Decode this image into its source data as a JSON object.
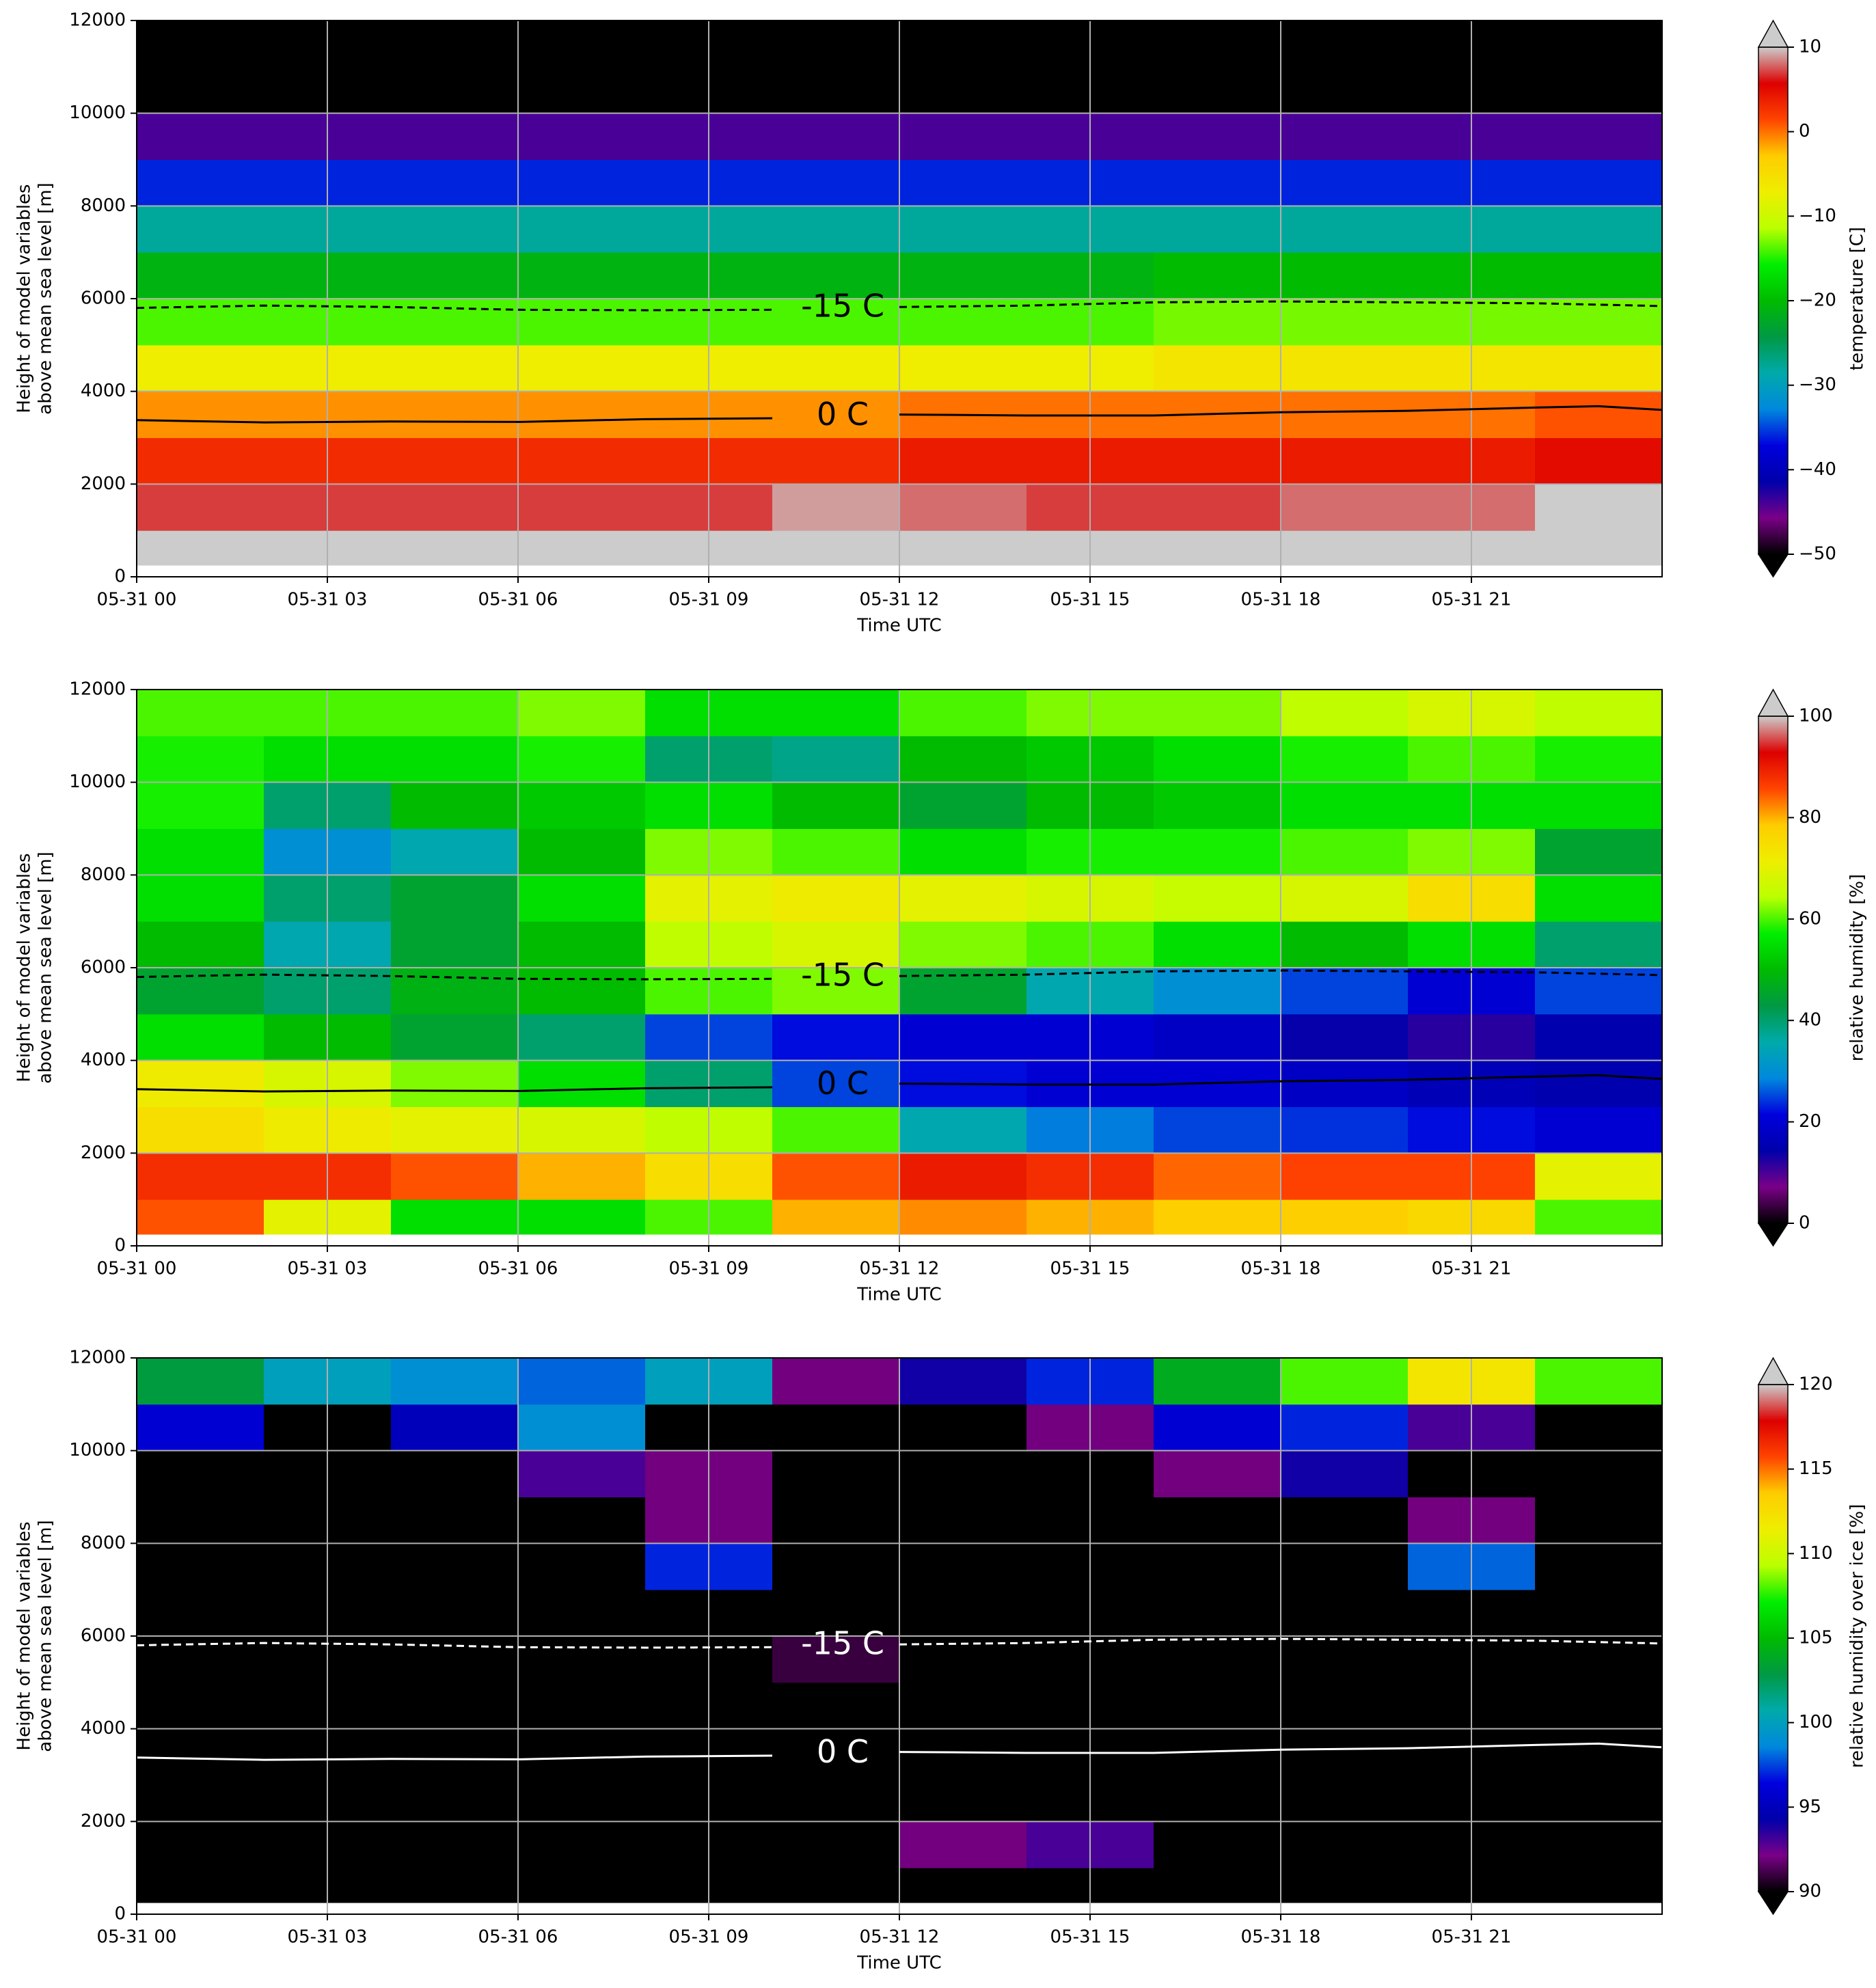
{
  "chart_data": [
    {
      "type": "heatmap",
      "x_label": "Time UTC",
      "y_label": [
        "Height of model variables",
        "above mean sea level [m]"
      ],
      "xlim": [
        0,
        24
      ],
      "xticks": [
        {
          "value": 0,
          "label": "05-31 00"
        },
        {
          "value": 3,
          "label": "05-31 03"
        },
        {
          "value": 6,
          "label": "05-31 06"
        },
        {
          "value": 9,
          "label": "05-31 09"
        },
        {
          "value": 12,
          "label": "05-31 12"
        },
        {
          "value": 15,
          "label": "05-31 15"
        },
        {
          "value": 18,
          "label": "05-31 18"
        },
        {
          "value": 21,
          "label": "05-31 21"
        }
      ],
      "ylim": [
        0,
        12000
      ],
      "yticks": [
        0,
        2000,
        4000,
        6000,
        8000,
        10000,
        12000
      ],
      "grid": true,
      "x_edges": [
        0,
        2,
        4,
        6,
        8,
        10,
        12,
        14,
        16,
        18,
        20,
        22,
        24
      ],
      "y_edges": [
        250,
        1000,
        2000,
        3000,
        4000,
        5000,
        6000,
        7000,
        8000,
        9000,
        10000,
        11000,
        12000
      ],
      "z": [
        [
          12,
          12,
          12,
          12,
          12,
          12,
          12,
          12,
          12,
          12,
          12,
          12
        ],
        [
          7,
          7,
          7,
          7,
          7,
          9,
          8,
          7,
          7,
          8,
          8,
          11
        ],
        [
          3,
          3,
          3,
          3,
          3,
          3,
          4,
          4,
          4,
          4,
          4,
          5
        ],
        [
          -1,
          -1,
          -1,
          -1,
          -1,
          -1,
          0,
          0,
          0,
          0,
          0,
          1
        ],
        [
          -7,
          -7,
          -7,
          -7,
          -7,
          -7,
          -7,
          -7,
          -6,
          -6,
          -6,
          -6
        ],
        [
          -14,
          -14,
          -14,
          -14,
          -14,
          -14,
          -14,
          -14,
          -13,
          -13,
          -13,
          -13
        ],
        [
          -21,
          -21,
          -21,
          -21,
          -21,
          -21,
          -21,
          -21,
          -20,
          -20,
          -20,
          -20
        ],
        [
          -28,
          -28,
          -28,
          -28,
          -28,
          -28,
          -28,
          -28,
          -28,
          -28,
          -28,
          -28
        ],
        [
          -36,
          -36,
          -36,
          -36,
          -36,
          -36,
          -36,
          -36,
          -36,
          -36,
          -36,
          -36
        ],
        [
          -44,
          -44,
          -44,
          -44,
          -44,
          -44,
          -44,
          -44,
          -44,
          -44,
          -44,
          -44
        ],
        [
          -52,
          -52,
          -52,
          -52,
          -52,
          -52,
          -52,
          -52,
          -52,
          -52,
          -52,
          -52
        ],
        [
          -56,
          -56,
          -56,
          -56,
          -56,
          -56,
          -56,
          -56,
          -56,
          -56,
          -56,
          -56
        ]
      ],
      "colorbar": {
        "label": "temperature [C]",
        "lim": [
          -50,
          10
        ],
        "ticks": [
          {
            "value": -50,
            "label": "−50"
          },
          {
            "value": -40,
            "label": "−40"
          },
          {
            "value": -30,
            "label": "−30"
          },
          {
            "value": -20,
            "label": "−20"
          },
          {
            "value": -10,
            "label": "−10"
          },
          0,
          10
        ],
        "colors": [
          "#000000",
          "#7a0088",
          "#0000aa",
          "#0000dd",
          "#0088dd",
          "#00aaaa",
          "#009944",
          "#00bb00",
          "#00ee00",
          "#bbff00",
          "#eeee00",
          "#ffcc00",
          "#ff4400",
          "#dd0000",
          "#cccccc"
        ],
        "under": "#000000",
        "over": "#cccccc"
      },
      "contour_x": [
        0,
        2,
        4,
        6,
        8,
        10,
        11,
        12,
        14,
        16,
        18,
        20,
        22,
        23,
        24
      ],
      "contours": [
        {
          "name": "-15 C",
          "color": "#000000",
          "dashed": true,
          "values": [
            5800,
            5850,
            5820,
            5760,
            5750,
            5760,
            null,
            5820,
            5850,
            5920,
            5940,
            5920,
            5900,
            5870,
            5840
          ]
        },
        {
          "name": "0 C",
          "color": "#000000",
          "dashed": false,
          "values": [
            3380,
            3330,
            3350,
            3340,
            3400,
            3420,
            null,
            3500,
            3480,
            3480,
            3550,
            3580,
            3650,
            3680,
            3600
          ]
        }
      ]
    },
    {
      "type": "heatmap",
      "x_label": "Time UTC",
      "y_label": [
        "Height of model variables",
        "above mean sea level [m]"
      ],
      "xlim": [
        0,
        24
      ],
      "xticks": [
        {
          "value": 0,
          "label": "05-31 00"
        },
        {
          "value": 3,
          "label": "05-31 03"
        },
        {
          "value": 6,
          "label": "05-31 06"
        },
        {
          "value": 9,
          "label": "05-31 09"
        },
        {
          "value": 12,
          "label": "05-31 12"
        },
        {
          "value": 15,
          "label": "05-31 15"
        },
        {
          "value": 18,
          "label": "05-31 18"
        },
        {
          "value": 21,
          "label": "05-31 21"
        }
      ],
      "ylim": [
        0,
        12000
      ],
      "yticks": [
        0,
        2000,
        4000,
        6000,
        8000,
        10000,
        12000
      ],
      "grid": true,
      "x_edges": [
        0,
        2,
        4,
        6,
        8,
        10,
        12,
        14,
        16,
        18,
        20,
        22,
        24
      ],
      "y_edges": [
        250,
        1000,
        2000,
        3000,
        4000,
        5000,
        6000,
        7000,
        8000,
        9000,
        10000,
        11000,
        12000
      ],
      "z": [
        [
          85,
          70,
          55,
          55,
          60,
          80,
          82,
          80,
          78,
          78,
          76,
          60
        ],
        [
          88,
          88,
          85,
          80,
          75,
          85,
          90,
          88,
          84,
          86,
          86,
          70
        ],
        [
          75,
          72,
          70,
          68,
          65,
          60,
          35,
          28,
          25,
          24,
          22,
          20
        ],
        [
          72,
          68,
          62,
          55,
          40,
          25,
          22,
          20,
          20,
          18,
          16,
          15
        ],
        [
          55,
          50,
          45,
          40,
          25,
          22,
          20,
          20,
          18,
          14,
          12,
          15
        ],
        [
          45,
          40,
          48,
          50,
          60,
          62,
          45,
          35,
          30,
          25,
          20,
          25
        ],
        [
          50,
          35,
          45,
          50,
          65,
          68,
          62,
          60,
          55,
          50,
          55,
          40
        ],
        [
          55,
          40,
          45,
          55,
          70,
          72,
          70,
          68,
          66,
          68,
          75,
          55
        ],
        [
          55,
          30,
          35,
          50,
          62,
          60,
          55,
          58,
          58,
          60,
          62,
          45
        ],
        [
          58,
          40,
          50,
          52,
          55,
          50,
          45,
          50,
          52,
          55,
          55,
          55
        ],
        [
          58,
          55,
          55,
          58,
          40,
          38,
          50,
          52,
          55,
          58,
          60,
          58
        ],
        [
          60,
          60,
          60,
          62,
          55,
          55,
          60,
          62,
          62,
          65,
          68,
          65
        ]
      ],
      "colorbar": {
        "label": "relative humidity [%]",
        "lim": [
          0,
          100
        ],
        "ticks": [
          0,
          20,
          40,
          60,
          80,
          100
        ],
        "colors": [
          "#000000",
          "#7a0088",
          "#0000aa",
          "#0000dd",
          "#0088dd",
          "#00aaaa",
          "#009944",
          "#00bb00",
          "#00ee00",
          "#bbff00",
          "#eeee00",
          "#ffcc00",
          "#ff4400",
          "#dd0000",
          "#cccccc"
        ],
        "under": "#000000",
        "over": "#cccccc"
      },
      "contour_x": [
        0,
        2,
        4,
        6,
        8,
        10,
        11,
        12,
        14,
        16,
        18,
        20,
        22,
        23,
        24
      ],
      "contours": [
        {
          "name": "-15 C",
          "color": "#000000",
          "dashed": true,
          "values": [
            5800,
            5850,
            5820,
            5760,
            5750,
            5760,
            null,
            5820,
            5850,
            5920,
            5940,
            5920,
            5900,
            5870,
            5840
          ]
        },
        {
          "name": "0 C",
          "color": "#000000",
          "dashed": false,
          "values": [
            3380,
            3330,
            3350,
            3340,
            3400,
            3420,
            null,
            3500,
            3480,
            3480,
            3550,
            3580,
            3650,
            3680,
            3600
          ]
        }
      ]
    },
    {
      "type": "heatmap",
      "x_label": "Time UTC",
      "y_label": [
        "Height of model variables",
        "above mean sea level [m]"
      ],
      "xlim": [
        0,
        24
      ],
      "xticks": [
        {
          "value": 0,
          "label": "05-31 00"
        },
        {
          "value": 3,
          "label": "05-31 03"
        },
        {
          "value": 6,
          "label": "05-31 06"
        },
        {
          "value": 9,
          "label": "05-31 09"
        },
        {
          "value": 12,
          "label": "05-31 12"
        },
        {
          "value": 15,
          "label": "05-31 15"
        },
        {
          "value": 18,
          "label": "05-31 18"
        },
        {
          "value": 21,
          "label": "05-31 21"
        }
      ],
      "ylim": [
        0,
        12000
      ],
      "yticks": [
        0,
        2000,
        4000,
        6000,
        8000,
        10000,
        12000
      ],
      "grid": true,
      "x_edges": [
        0,
        2,
        4,
        6,
        8,
        10,
        12,
        14,
        16,
        18,
        20,
        22,
        24
      ],
      "y_edges": [
        250,
        1000,
        2000,
        3000,
        4000,
        5000,
        6000,
        7000,
        8000,
        9000,
        10000,
        11000,
        12000
      ],
      "z": [
        [
          80,
          80,
          80,
          80,
          80,
          80,
          80,
          80,
          80,
          80,
          80,
          80
        ],
        [
          80,
          80,
          80,
          80,
          80,
          80,
          92,
          93,
          80,
          80,
          80,
          80
        ],
        [
          80,
          80,
          80,
          80,
          80,
          80,
          80,
          80,
          80,
          80,
          80,
          80
        ],
        [
          80,
          80,
          80,
          80,
          80,
          80,
          80,
          80,
          80,
          80,
          80,
          80
        ],
        [
          80,
          80,
          80,
          80,
          80,
          80,
          80,
          80,
          80,
          80,
          80,
          80
        ],
        [
          80,
          80,
          80,
          80,
          80,
          91,
          80,
          80,
          80,
          80,
          80,
          80
        ],
        [
          80,
          80,
          80,
          80,
          80,
          80,
          80,
          80,
          80,
          80,
          80,
          80
        ],
        [
          80,
          80,
          80,
          80,
          97,
          80,
          80,
          80,
          80,
          80,
          98,
          80
        ],
        [
          80,
          80,
          80,
          80,
          92,
          80,
          80,
          80,
          80,
          80,
          92,
          80
        ],
        [
          80,
          80,
          80,
          93,
          92,
          80,
          80,
          80,
          92,
          94,
          80,
          80
        ],
        [
          96,
          80,
          95,
          99,
          80,
          80,
          80,
          92,
          96,
          97,
          93,
          80
        ],
        [
          103,
          100,
          99,
          98,
          100,
          92,
          94,
          97,
          104,
          108,
          112,
          108
        ]
      ],
      "colorbar": {
        "label": "relative humidity over ice [%]",
        "lim": [
          90,
          120
        ],
        "ticks": [
          90,
          95,
          100,
          105,
          110,
          115,
          120
        ],
        "colors": [
          "#000000",
          "#7a0088",
          "#0000aa",
          "#0000dd",
          "#0088dd",
          "#00aaaa",
          "#009944",
          "#00bb00",
          "#00ee00",
          "#bbff00",
          "#eeee00",
          "#ffcc00",
          "#ff4400",
          "#dd0000",
          "#cccccc"
        ],
        "under": "#000000",
        "over": "#cccccc"
      },
      "contour_x": [
        0,
        2,
        4,
        6,
        8,
        10,
        11,
        12,
        14,
        16,
        18,
        20,
        22,
        23,
        24
      ],
      "contours": [
        {
          "name": "-15 C",
          "color": "#ffffff",
          "dashed": true,
          "values": [
            5800,
            5850,
            5820,
            5760,
            5750,
            5760,
            null,
            5820,
            5850,
            5920,
            5940,
            5920,
            5900,
            5870,
            5840
          ]
        },
        {
          "name": "0 C",
          "color": "#ffffff",
          "dashed": false,
          "values": [
            3380,
            3330,
            3350,
            3340,
            3400,
            3420,
            null,
            3500,
            3480,
            3480,
            3550,
            3580,
            3650,
            3680,
            3600
          ]
        }
      ]
    }
  ]
}
